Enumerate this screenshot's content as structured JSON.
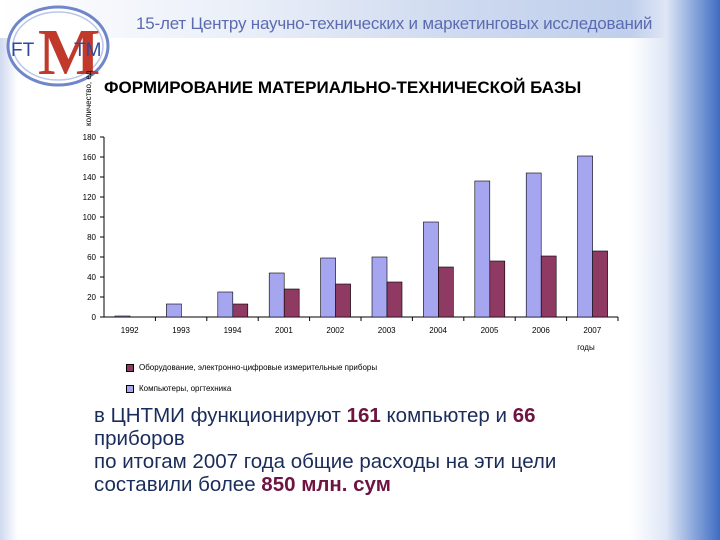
{
  "header": {
    "title": "15-лет Центру научно-технических и маркетинговых исследований"
  },
  "logo": {
    "text_left": "FT",
    "text_center": "M",
    "text_right": "TM"
  },
  "chart_data": {
    "type": "bar",
    "title": "ФОРМИРОВАНИЕ МАТЕРИАЛЬНО-ТЕХНИЧЕСКОЙ БАЗЫ",
    "xlabel": "годы",
    "ylabel": "количество, ед",
    "ylim": [
      0,
      180
    ],
    "yticks": [
      "0",
      "20",
      "40",
      "60",
      "80",
      "100",
      "120",
      "140",
      "160",
      "180"
    ],
    "categories": [
      "1992",
      "1993",
      "1994",
      "2001",
      "2002",
      "2003",
      "2004",
      "2005",
      "2006",
      "2007"
    ],
    "series": [
      {
        "name": "Компьютеры, оргтехника",
        "color": "#a6a6f0",
        "values": [
          1,
          13,
          25,
          44,
          59,
          60,
          95,
          136,
          144,
          161
        ]
      },
      {
        "name": "Оборудование, электронно-цифровые измерительные приборы",
        "color": "#8e3a63",
        "values": [
          0,
          0,
          13,
          28,
          33,
          35,
          50,
          56,
          61,
          66
        ]
      }
    ],
    "legend_position": "bottom-left"
  },
  "text": {
    "line1_a": "в ЦНТМИ функционируют ",
    "line1_b": "161",
    "line1_c": " компьютер и ",
    "line1_d": "66",
    "line2": "приборов",
    "line3": "по итогам 2007 года общие расходы на эти цели",
    "line4_a": "составили более ",
    "line4_b": "850 млн. сум"
  }
}
